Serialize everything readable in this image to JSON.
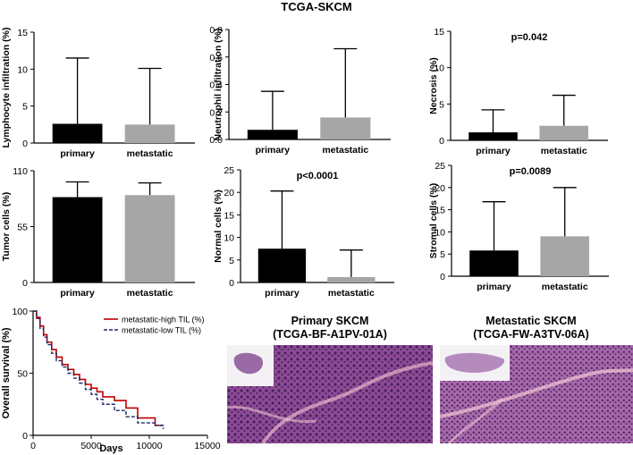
{
  "figure_title": "TCGA-SKCM",
  "colors": {
    "primary": "#000000",
    "metastatic": "#a6a6a6",
    "high": "#c00000",
    "low": "#1f2a6b",
    "tissue": "#7a3f8c"
  },
  "chart_data": [
    {
      "id": "lymph",
      "type": "bar",
      "categories": [
        "primary",
        "metastatic"
      ],
      "values": [
        2.6,
        2.5
      ],
      "error_upper": [
        11.5,
        10.1
      ],
      "ylabel": "Lymphocyte infiltration (%)",
      "ylim": [
        0,
        15
      ],
      "yticks": [
        0,
        5,
        10,
        15
      ],
      "ytick_labels": [
        "0",
        "5",
        "10",
        "15"
      ],
      "annotation": ""
    },
    {
      "id": "neut",
      "type": "bar",
      "categories": [
        "primary",
        "metastatic"
      ],
      "values": [
        0.07,
        0.16
      ],
      "error_upper": [
        0.35,
        0.66
      ],
      "ylabel": "Neutrophil infiltration (%)",
      "ylim": [
        0,
        0.8
      ],
      "yticks": [
        0,
        0.2,
        0.4,
        0.6,
        0.8
      ],
      "ytick_labels": [
        "0.0",
        "0.2",
        "0.4",
        "0.6",
        "0.8"
      ],
      "annotation": ""
    },
    {
      "id": "necro",
      "type": "bar",
      "categories": [
        "primary",
        "metastatic"
      ],
      "values": [
        1.1,
        2.0
      ],
      "error_upper": [
        4.2,
        6.2
      ],
      "ylabel": "Necrosis (%)",
      "ylim": [
        0,
        15
      ],
      "yticks": [
        0,
        5,
        10,
        15
      ],
      "ytick_labels": [
        "0",
        "5",
        "10",
        "15"
      ],
      "annotation": "p=0.042"
    },
    {
      "id": "tumor",
      "type": "bar",
      "categories": [
        "primary",
        "metastatic"
      ],
      "values": [
        84,
        86
      ],
      "error_upper": [
        99,
        98
      ],
      "ylabel": "Tumor cells (%)",
      "ylim": [
        0,
        110
      ],
      "yticks": [
        0,
        55,
        110
      ],
      "ytick_labels": [
        "0",
        "55",
        "110"
      ],
      "annotation": ""
    },
    {
      "id": "normal",
      "type": "bar",
      "categories": [
        "primary",
        "metastatic"
      ],
      "values": [
        7.5,
        1.2
      ],
      "error_upper": [
        20.3,
        7.2
      ],
      "ylabel": "Normal cells (%)",
      "ylim": [
        0,
        25
      ],
      "yticks": [
        0,
        5,
        10,
        15,
        20,
        25
      ],
      "ytick_labels": [
        "0",
        "5",
        "10",
        "15",
        "20",
        "25"
      ],
      "annotation": "p<0.0001"
    },
    {
      "id": "stromal",
      "type": "bar",
      "categories": [
        "primary",
        "metastatic"
      ],
      "values": [
        5.8,
        9.0
      ],
      "error_upper": [
        16.8,
        20.0
      ],
      "ylabel": "Stromal cells (%)",
      "ylim": [
        0,
        25
      ],
      "yticks": [
        0,
        5,
        10,
        15,
        20,
        25
      ],
      "ytick_labels": [
        "0",
        "5",
        "10",
        "15",
        "20",
        "25"
      ],
      "annotation": "p=0.0089"
    },
    {
      "id": "km",
      "type": "line",
      "xlabel": "Days",
      "ylabel": "Overall survival (%)",
      "xlim": [
        0,
        15000
      ],
      "ylim": [
        0,
        100
      ],
      "xticks": [
        0,
        5000,
        10000,
        15000
      ],
      "xtick_labels": [
        "0",
        "5000",
        "10000",
        "15000"
      ],
      "yticks": [
        0,
        50,
        100
      ],
      "ytick_labels": [
        "0",
        "50",
        "100"
      ],
      "series": [
        {
          "name": "metastatic-high TIL (%)",
          "style": "solid",
          "x": [
            0,
            300,
            600,
            900,
            1200,
            1600,
            2000,
            2500,
            3000,
            3500,
            4000,
            4500,
            5000,
            5500,
            6000,
            7000,
            8000,
            9000,
            10500,
            11200
          ],
          "y": [
            100,
            95,
            88,
            81,
            75,
            69,
            63,
            57,
            53,
            49,
            45,
            41,
            38,
            35,
            31,
            28,
            22,
            14,
            8,
            8
          ]
        },
        {
          "name": "metastatic-low TIL (%)",
          "style": "dashed",
          "x": [
            0,
            300,
            600,
            900,
            1200,
            1600,
            2000,
            2500,
            3000,
            3500,
            4000,
            4500,
            5000,
            5500,
            6000,
            7000,
            8000,
            9000,
            10500,
            11200
          ],
          "y": [
            100,
            94,
            86,
            79,
            73,
            66,
            60,
            55,
            50,
            46,
            42,
            37,
            33,
            29,
            25,
            20,
            15,
            10,
            8,
            5
          ]
        }
      ]
    }
  ],
  "histology": [
    {
      "title_line1": "Primary SKCM",
      "title_line2": "(TCGA-BF-A1PV-01A)"
    },
    {
      "title_line1": "Metastatic SKCM",
      "title_line2": "(TCGA-FW-A3TV-06A)"
    }
  ]
}
